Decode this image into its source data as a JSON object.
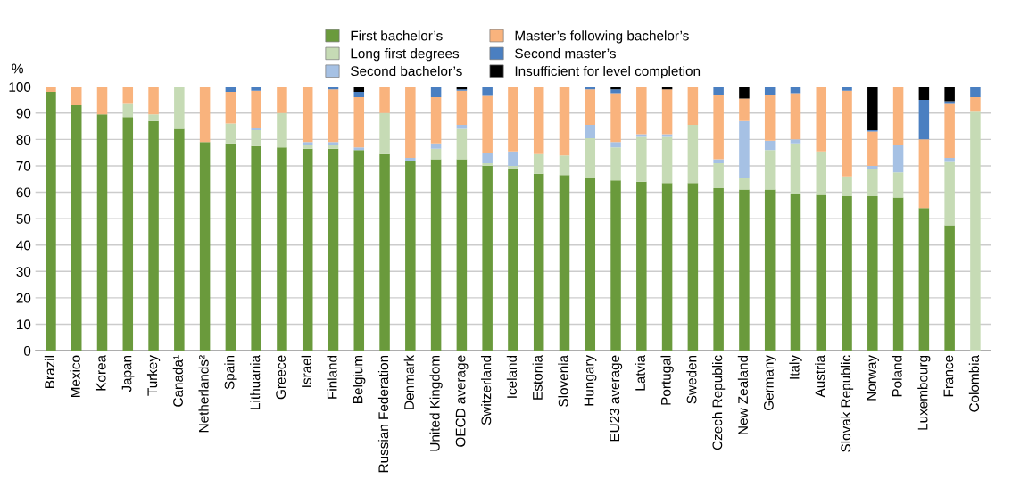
{
  "chart_data": {
    "type": "bar",
    "stacked": true,
    "ylabel": "%",
    "ylim": [
      0,
      100
    ],
    "yticks": [
      0,
      10,
      20,
      30,
      40,
      50,
      60,
      70,
      80,
      90,
      100
    ],
    "grid": "y",
    "legend": "top",
    "categories": [
      "Brazil",
      "Mexico",
      "Korea",
      "Japan",
      "Turkey",
      "Canada¹",
      "Netherlands²",
      "Spain",
      "Lithuania",
      "Greece",
      "Israel",
      "Finland",
      "Belgium",
      "Russian Federation",
      "Denmark",
      "United Kingdom",
      "OECD average",
      "Switzerland",
      "Iceland",
      "Estonia",
      "Slovenia",
      "Hungary",
      "EU23 average",
      "Latvia",
      "Portugal",
      "Sweden",
      "Czech Republic",
      "New Zealand",
      "Germany",
      "Italy",
      "Austria",
      "Slovak Republic",
      "Norway",
      "Poland",
      "Luxembourg",
      "France",
      "Colombia"
    ],
    "series": [
      {
        "name": "First bachelor’s",
        "color": "#6a9a3c",
        "values": [
          98,
          93,
          89.5,
          88.5,
          87,
          84,
          79,
          78.5,
          77.5,
          77,
          76.5,
          76.5,
          76,
          74.5,
          72,
          72.5,
          72.5,
          70,
          69,
          67,
          66.5,
          65.5,
          64.5,
          64,
          63.5,
          63.5,
          61.5,
          61,
          61,
          59.5,
          59,
          58.5,
          58.5,
          58,
          54,
          47.5,
          0
        ]
      },
      {
        "name": "Long first degrees",
        "color": "#c6dbb5",
        "values": [
          0,
          0,
          0,
          5,
          2.5,
          16,
          0,
          7.5,
          6,
          13,
          1.5,
          1.5,
          0,
          15.5,
          0,
          4,
          11.5,
          1,
          1,
          7.5,
          7.5,
          15,
          12.5,
          17,
          17.5,
          22,
          9.5,
          4.5,
          15,
          19,
          16.5,
          7.5,
          10.5,
          9.5,
          0,
          24,
          90.5
        ]
      },
      {
        "name": "Second bachelor’s",
        "color": "#a6c1e4",
        "values": [
          0,
          0,
          0,
          0,
          0,
          0,
          0,
          0,
          1,
          0,
          1,
          1,
          1,
          0,
          1,
          2,
          1.5,
          4,
          5.5,
          0,
          0,
          5,
          2,
          1,
          1,
          0,
          1.5,
          21.5,
          3.5,
          1.5,
          0,
          0,
          1,
          10.5,
          0,
          1.5,
          0
        ]
      },
      {
        "name": "Master’s following bachelor’s",
        "color": "#f9b37d",
        "values": [
          2,
          7,
          10.5,
          6.5,
          10.5,
          0,
          21,
          12,
          14,
          10,
          21,
          20,
          19,
          10,
          27,
          17.5,
          13,
          21.5,
          24.5,
          25.5,
          26,
          13.5,
          18.5,
          18,
          17,
          14.5,
          24.5,
          8.5,
          17.5,
          17.5,
          24.5,
          32.5,
          13,
          22,
          26,
          20.5,
          5.5
        ]
      },
      {
        "name": "Second master’s",
        "color": "#4a7fc1",
        "values": [
          0,
          0,
          0,
          0,
          0,
          0,
          0,
          2,
          1.5,
          0,
          0,
          1,
          2,
          0,
          0,
          4,
          0.5,
          3.5,
          0,
          0,
          0,
          1,
          1.5,
          0,
          0,
          0,
          3,
          0,
          3,
          2.5,
          0,
          1.5,
          0.5,
          0,
          15,
          1,
          4
        ]
      },
      {
        "name": "Insufficient for level completion",
        "color": "#000000",
        "values": [
          0,
          0,
          0,
          0,
          0,
          0,
          0,
          0,
          0,
          0,
          0,
          0,
          2,
          0,
          0,
          0,
          1,
          0,
          0,
          0,
          0,
          0,
          1,
          0,
          1,
          0,
          0,
          4.5,
          0,
          0,
          0,
          0,
          16.5,
          0,
          5,
          5.5,
          0
        ]
      }
    ]
  }
}
